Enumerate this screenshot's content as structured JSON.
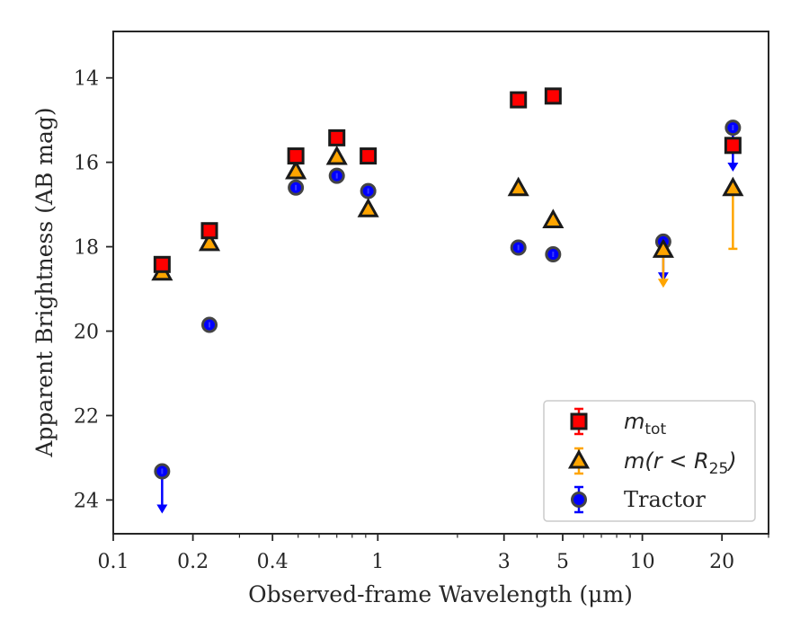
{
  "chart_data": {
    "type": "scatter",
    "title": "",
    "xlabel": "Observed-frame Wavelength (μm)",
    "ylabel": "Apparent Brightness (AB mag)",
    "x_scale": "log",
    "xlim": [
      0.1,
      30
    ],
    "ylim": [
      24.8,
      12.9
    ],
    "y_inverted": true,
    "grid": false,
    "legend_position": "lower-right",
    "x_ticks": [
      {
        "value": 0.1,
        "label": "0.1"
      },
      {
        "value": 0.2,
        "label": "0.2"
      },
      {
        "value": 0.4,
        "label": "0.4"
      },
      {
        "value": 1,
        "label": "1"
      },
      {
        "value": 3,
        "label": "3"
      },
      {
        "value": 5,
        "label": "5"
      },
      {
        "value": 10,
        "label": "10"
      },
      {
        "value": 20,
        "label": "20"
      }
    ],
    "y_ticks": [
      {
        "value": 14,
        "label": "14"
      },
      {
        "value": 16,
        "label": "16"
      },
      {
        "value": 18,
        "label": "18"
      },
      {
        "value": 20,
        "label": "20"
      },
      {
        "value": 22,
        "label": "22"
      },
      {
        "value": 24,
        "label": "24"
      }
    ],
    "series": [
      {
        "name": "m_tot",
        "legend_main": "m",
        "legend_sub": "tot",
        "marker": "square",
        "color": "#ff0000",
        "edge_color": "#1a1a1a",
        "points": [
          {
            "x": 0.153,
            "y": 18.42
          },
          {
            "x": 0.231,
            "y": 17.62
          },
          {
            "x": 0.49,
            "y": 15.85
          },
          {
            "x": 0.7,
            "y": 15.42
          },
          {
            "x": 0.92,
            "y": 15.85
          },
          {
            "x": 3.4,
            "y": 14.52
          },
          {
            "x": 4.6,
            "y": 14.43
          },
          {
            "x": 22.0,
            "y": 15.6
          }
        ]
      },
      {
        "name": "m(r < R25)",
        "legend_main": "m(r < R",
        "legend_sub": "25",
        "legend_end": ")",
        "marker": "triangle",
        "color": "#ffa500",
        "edge_color": "#1a1a1a",
        "points": [
          {
            "x": 0.153,
            "y": 18.62
          },
          {
            "x": 0.231,
            "y": 17.92
          },
          {
            "x": 0.49,
            "y": 16.22
          },
          {
            "x": 0.7,
            "y": 15.88
          },
          {
            "x": 0.92,
            "y": 17.12
          },
          {
            "x": 3.4,
            "y": 16.62
          },
          {
            "x": 4.6,
            "y": 17.38
          },
          {
            "x": 12.0,
            "y": 18.08,
            "upper_limit_to": 18.95
          },
          {
            "x": 22.0,
            "y": 16.62,
            "error_low": 16.6,
            "error_high": 18.05
          }
        ]
      },
      {
        "name": "Tractor",
        "marker": "circle",
        "color": "#0000ff",
        "edge_color": "#444444",
        "points": [
          {
            "x": 0.153,
            "y": 23.32,
            "upper_limit_to": 24.3
          },
          {
            "x": 0.231,
            "y": 19.85
          },
          {
            "x": 0.49,
            "y": 16.6
          },
          {
            "x": 0.7,
            "y": 16.32
          },
          {
            "x": 0.92,
            "y": 16.68
          },
          {
            "x": 3.4,
            "y": 18.02
          },
          {
            "x": 4.6,
            "y": 18.18
          },
          {
            "x": 12.0,
            "y": 17.88,
            "upper_limit_to": 18.8
          },
          {
            "x": 22.0,
            "y": 15.18,
            "upper_limit_to": 16.2
          }
        ]
      }
    ]
  }
}
